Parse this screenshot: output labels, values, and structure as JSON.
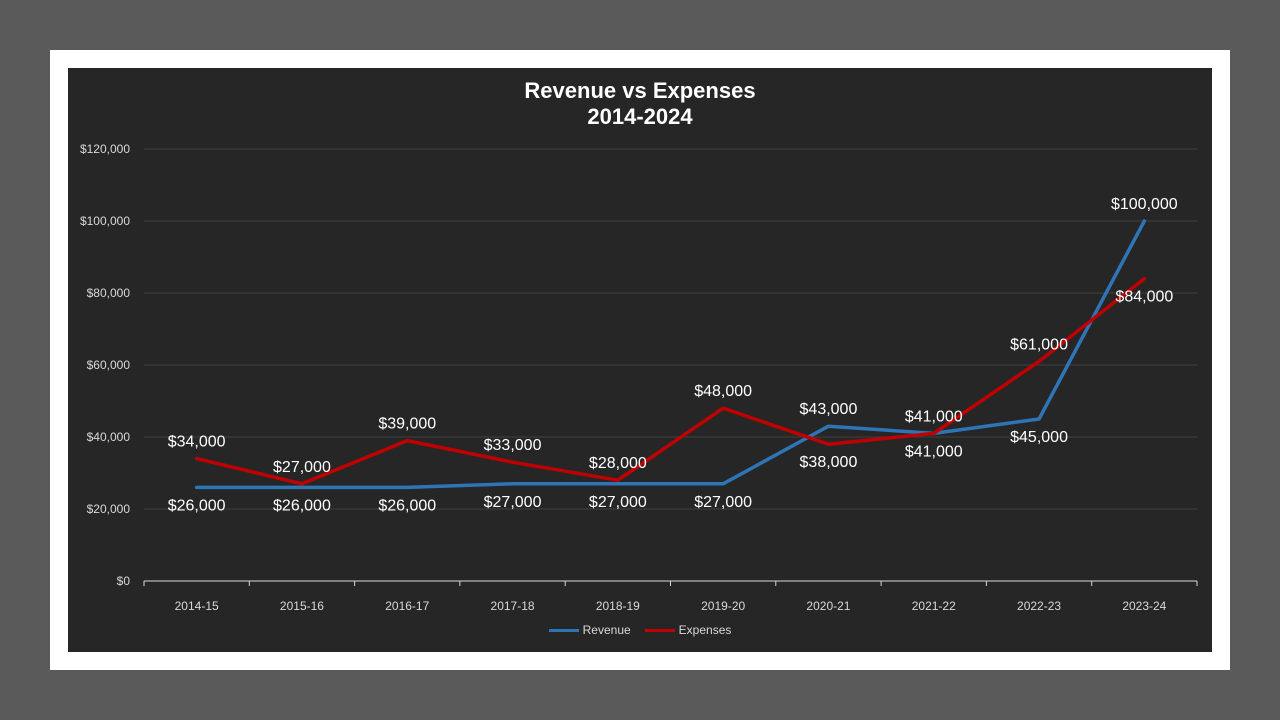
{
  "colors": {
    "page_bg": "#5a5a5a",
    "chart_bg": "#262626",
    "revenue": "#2e75b6",
    "expenses": "#c00000",
    "text": "#ffffff",
    "axis_text": "#d9d9d9",
    "grid": "#404040"
  },
  "chart_data": {
    "type": "line",
    "title": "Revenue vs Expenses",
    "subtitle": "2014-2024",
    "xlabel": "",
    "ylabel": "",
    "categories": [
      "2014-15",
      "2015-16",
      "2016-17",
      "2017-18",
      "2018-19",
      "2019-20",
      "2020-21",
      "2021-22",
      "2022-23",
      "2023-24"
    ],
    "ylim": [
      0,
      120000
    ],
    "yticks": [
      0,
      20000,
      40000,
      60000,
      80000,
      100000,
      120000
    ],
    "ytick_labels": [
      "$0",
      "$20,000",
      "$40,000",
      "$60,000",
      "$80,000",
      "$100,000",
      "$120,000"
    ],
    "grid": true,
    "legend_position": "bottom",
    "series": [
      {
        "name": "Revenue",
        "color": "#2e75b6",
        "values": [
          26000,
          26000,
          26000,
          27000,
          27000,
          27000,
          43000,
          41000,
          45000,
          100000
        ],
        "labels": [
          "$26,000",
          "$26,000",
          "$26,000",
          "$27,000",
          "$27,000",
          "$27,000",
          "$43,000",
          "$41,000",
          "$45,000",
          "$100,000"
        ]
      },
      {
        "name": "Expenses",
        "color": "#c00000",
        "values": [
          34000,
          27000,
          39000,
          33000,
          28000,
          48000,
          38000,
          41000,
          61000,
          84000
        ],
        "labels": [
          "$34,000",
          "$27,000",
          "$39,000",
          "$33,000",
          "$28,000",
          "$48,000",
          "$38,000",
          "$41,000",
          "$61,000",
          "$84,000"
        ]
      }
    ]
  }
}
